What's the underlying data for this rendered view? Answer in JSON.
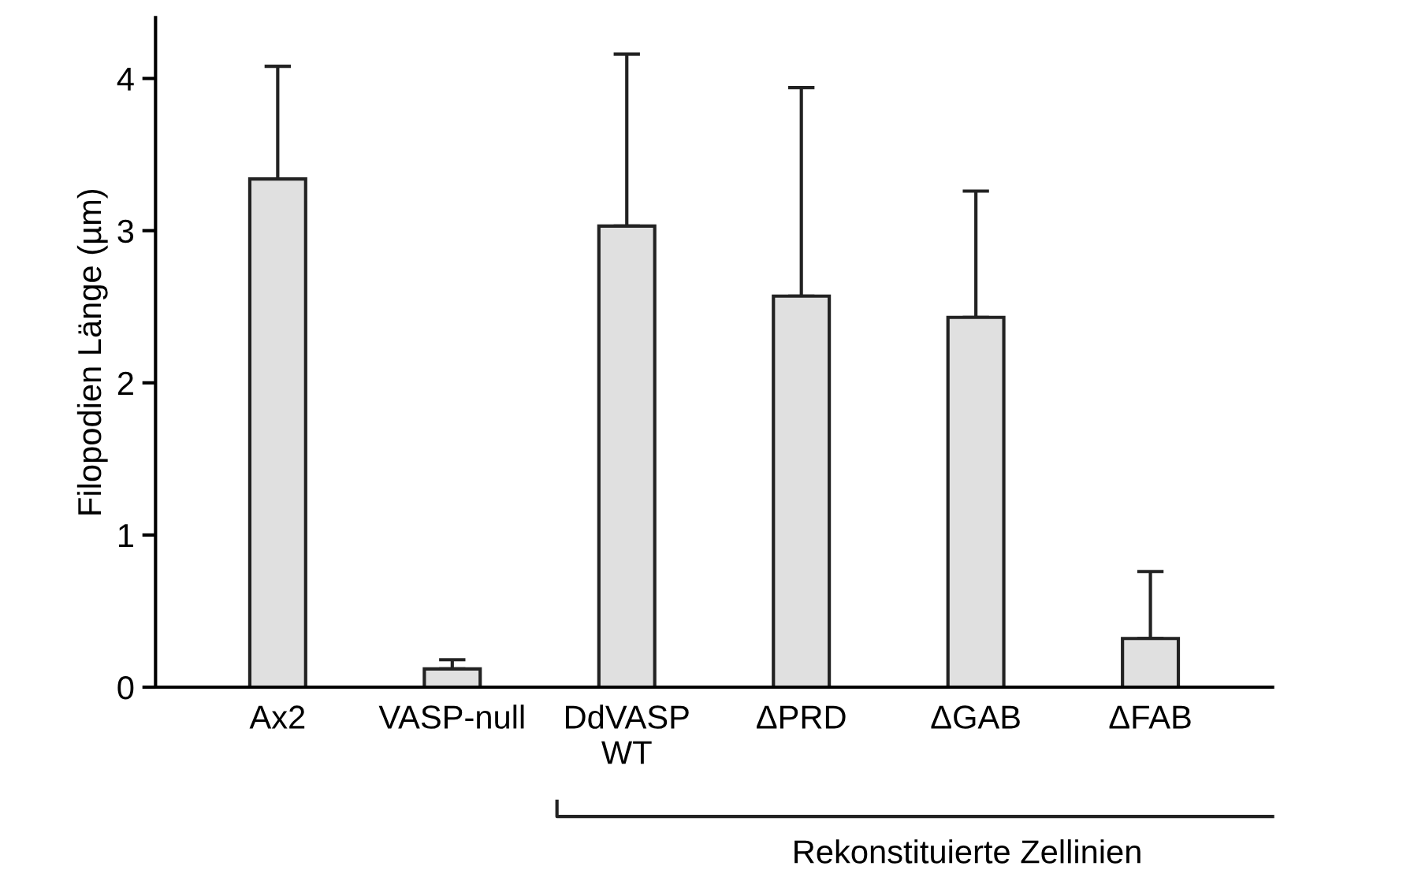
{
  "chart_data": {
    "type": "bar",
    "ylabel": "Filopodien Länge (µm)",
    "categories": [
      "Ax2",
      "VASP-null",
      "DdVASP\nWT",
      "ΔPRD",
      "ΔGAB",
      "ΔFAB"
    ],
    "values": [
      3.34,
      0.12,
      3.03,
      2.57,
      2.43,
      0.32
    ],
    "errors": [
      [
        3.34,
        4.08
      ],
      [
        0.12,
        0.18
      ],
      [
        3.03,
        4.16
      ],
      [
        2.57,
        3.94
      ],
      [
        2.43,
        3.26
      ],
      [
        0.32,
        0.76
      ]
    ],
    "color": "#e0e0e0",
    "ylim": [
      0,
      4.4
    ],
    "yticks": [
      0,
      1,
      2,
      3,
      4
    ],
    "grid": false,
    "legend": false,
    "annotations": [
      "Rekonstituierte Zellinien"
    ]
  }
}
